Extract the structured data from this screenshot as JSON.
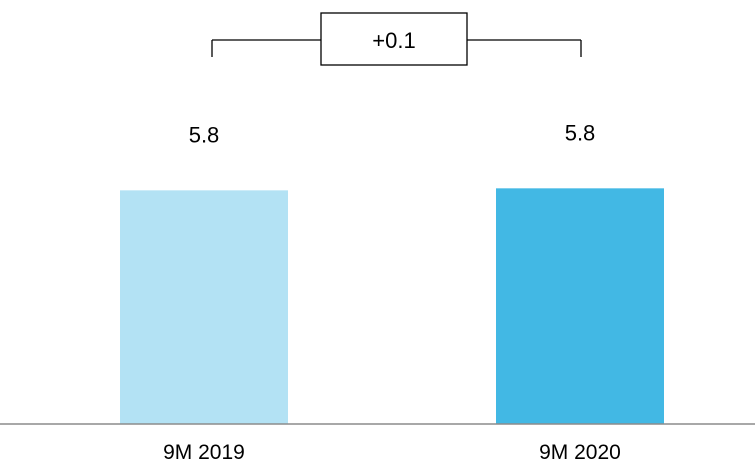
{
  "chart_data": {
    "type": "bar",
    "categories": [
      "9M 2019",
      "9M 2020"
    ],
    "values": [
      5.8,
      5.85
    ],
    "data_labels": [
      "5.8",
      "5.8"
    ],
    "colors": [
      "#b3e2f4",
      "#42b8e4"
    ],
    "ylim": [
      0,
      7.0
    ],
    "grid": false,
    "legend": "none",
    "delta_label": "+0.1",
    "axis_color": "#8c8c8c"
  }
}
